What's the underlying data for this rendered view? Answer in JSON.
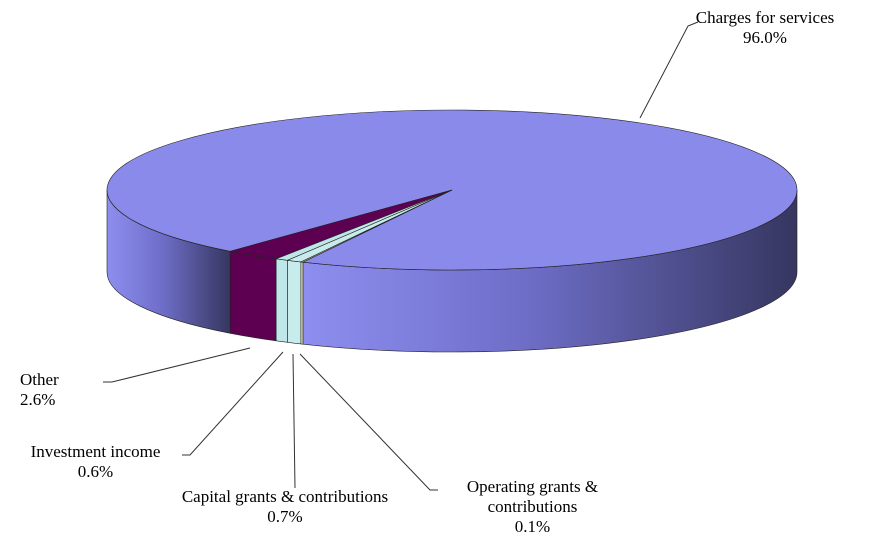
{
  "chart_data": {
    "type": "pie3d",
    "categories": [
      "Charges for services",
      "Other",
      "Investment income",
      "Capital grants & contributions",
      "Operating grants & contributions"
    ],
    "values": [
      96.0,
      2.6,
      0.6,
      0.7,
      0.1
    ],
    "value_labels": [
      "96.0%",
      "2.6%",
      "0.6%",
      "0.7%",
      "0.1%"
    ],
    "colors": [
      "#8a8aea",
      "#5e0052",
      "#bfe6e8",
      "#c8ecec",
      "#f2ecc4"
    ]
  }
}
